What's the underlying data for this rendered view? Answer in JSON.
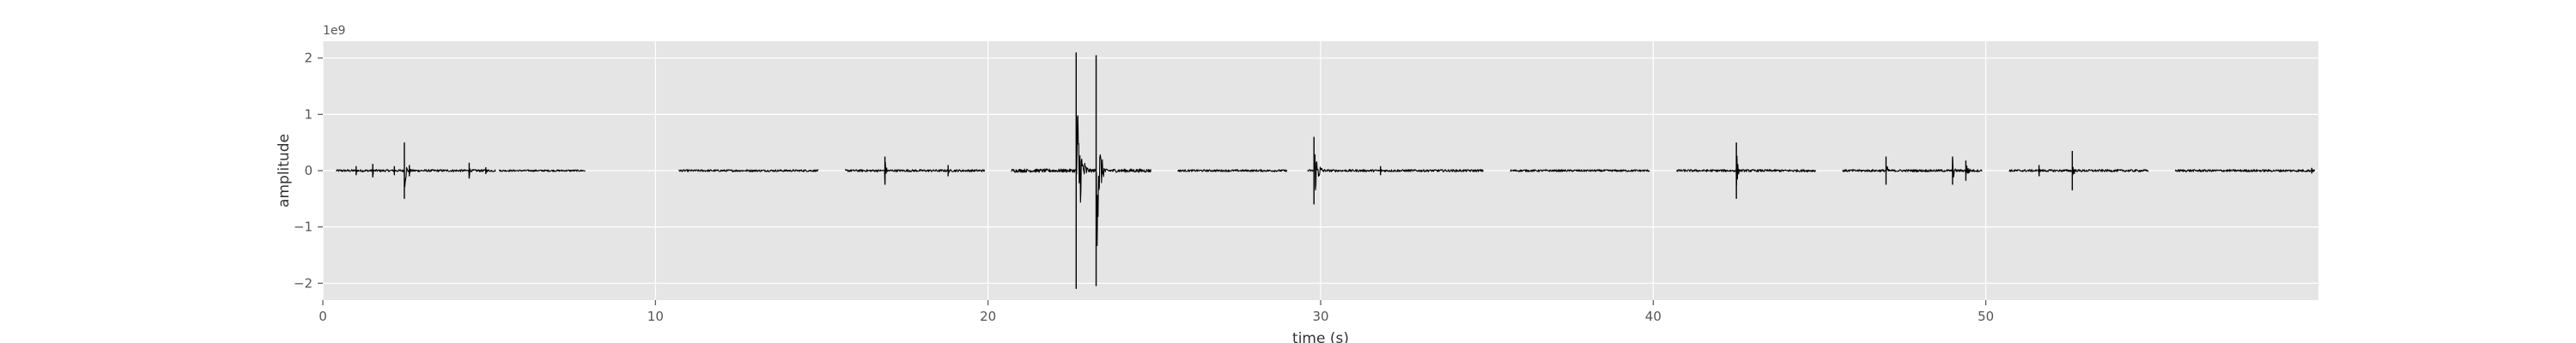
{
  "chart_data": {
    "type": "line",
    "title": "",
    "xlabel": "time (s)",
    "ylabel": "amplitude",
    "y_scale_label": "1e9",
    "xlim": [
      0,
      60
    ],
    "ylim": [
      -2.3,
      2.3
    ],
    "grid": true,
    "xticks": [
      {
        "value": 0,
        "label": "0"
      },
      {
        "value": 10,
        "label": "10"
      },
      {
        "value": 20,
        "label": "20"
      },
      {
        "value": 30,
        "label": "30"
      },
      {
        "value": 40,
        "label": "40"
      },
      {
        "value": 50,
        "label": "50"
      }
    ],
    "yticks": [
      {
        "value": 2,
        "label": "2"
      },
      {
        "value": 1,
        "label": "1"
      },
      {
        "value": 0,
        "label": "0"
      },
      {
        "value": -1,
        "label": "−1"
      },
      {
        "value": -2,
        "label": "−2"
      }
    ],
    "segments": [
      {
        "start": 0.4,
        "end": 5.2,
        "noise": 0.02
      },
      {
        "start": 5.3,
        "end": 7.9,
        "noise": 0.015
      },
      {
        "start": 10.7,
        "end": 14.9,
        "noise": 0.018
      },
      {
        "start": 15.7,
        "end": 19.9,
        "noise": 0.02
      },
      {
        "start": 20.7,
        "end": 24.9,
        "noise": 0.03
      },
      {
        "start": 25.7,
        "end": 29.0,
        "noise": 0.018
      },
      {
        "start": 29.6,
        "end": 34.9,
        "noise": 0.02
      },
      {
        "start": 35.7,
        "end": 39.9,
        "noise": 0.018
      },
      {
        "start": 40.7,
        "end": 44.9,
        "noise": 0.02
      },
      {
        "start": 45.7,
        "end": 49.9,
        "noise": 0.02
      },
      {
        "start": 50.7,
        "end": 54.9,
        "noise": 0.02
      },
      {
        "start": 55.7,
        "end": 59.9,
        "noise": 0.02
      }
    ],
    "spikes": [
      {
        "t": 1.0,
        "amp": 0.08,
        "width": 0.08
      },
      {
        "t": 1.5,
        "amp": 0.12,
        "width": 0.08
      },
      {
        "t": 2.15,
        "amp": 0.08,
        "width": 0.08
      },
      {
        "t": 2.45,
        "amp": 0.5,
        "width": 0.15
      },
      {
        "t": 2.6,
        "amp": 0.1,
        "width": 0.1
      },
      {
        "t": 4.4,
        "amp": 0.14,
        "width": 0.08
      },
      {
        "t": 4.9,
        "amp": 0.06,
        "width": 0.08
      },
      {
        "t": 16.9,
        "amp": 0.25,
        "width": 0.12
      },
      {
        "t": 18.8,
        "amp": 0.1,
        "width": 0.08
      },
      {
        "t": 22.65,
        "amp": 2.1,
        "width": 0.35
      },
      {
        "t": 23.25,
        "amp": 2.05,
        "width": 0.28
      },
      {
        "t": 29.8,
        "amp": 0.6,
        "width": 0.35
      },
      {
        "t": 31.8,
        "amp": 0.08,
        "width": 0.08
      },
      {
        "t": 42.5,
        "amp": 0.5,
        "width": 0.12
      },
      {
        "t": 47.0,
        "amp": 0.25,
        "width": 0.12
      },
      {
        "t": 49.0,
        "amp": 0.25,
        "width": 0.15
      },
      {
        "t": 49.4,
        "amp": 0.18,
        "width": 0.25
      },
      {
        "t": 51.6,
        "amp": 0.1,
        "width": 0.08
      },
      {
        "t": 52.6,
        "amp": 0.35,
        "width": 0.12
      },
      {
        "t": 59.8,
        "amp": 0.05,
        "width": 0.08
      }
    ],
    "colors": {
      "plot_background": "#e5e5e5",
      "grid": "#ffffff",
      "line": "#000000",
      "tick_text": "#555555",
      "label_text": "#333333"
    }
  }
}
